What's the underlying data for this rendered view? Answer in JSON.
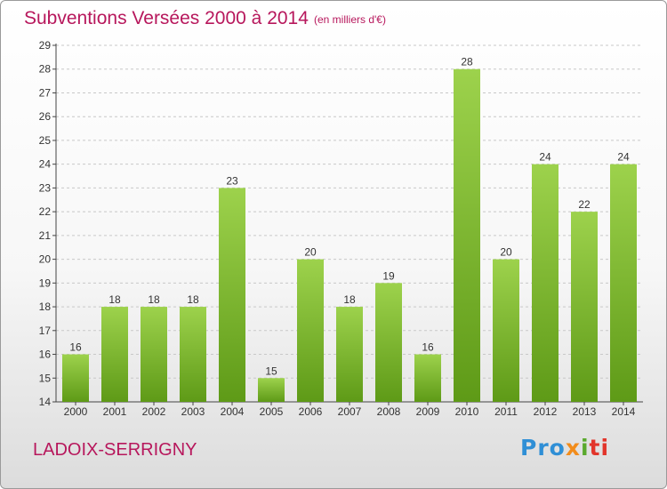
{
  "header": {
    "title": "Subventions Versées 2000 à 2014",
    "unit_note": "(en milliers d'€)"
  },
  "footer": {
    "commune": "LADOIX-SERRIGNY",
    "logo_parts": [
      "Pro",
      "x",
      "i",
      "ti"
    ]
  },
  "colors": {
    "accent": "#b7175c",
    "bar_top": "#9dd24c",
    "bar_bottom": "#5e9a17",
    "grid": "#c8c8c8"
  },
  "chart_data": {
    "type": "bar",
    "title": "Subventions Versées 2000 à 2014",
    "subtitle": "(en milliers d'€)",
    "categories": [
      "2000",
      "2001",
      "2002",
      "2003",
      "2004",
      "2005",
      "2006",
      "2007",
      "2008",
      "2009",
      "2010",
      "2011",
      "2012",
      "2013",
      "2014"
    ],
    "values": [
      16,
      18,
      18,
      18,
      23,
      15,
      20,
      18,
      19,
      16,
      28,
      20,
      24,
      22,
      24
    ],
    "ylim": [
      14,
      29
    ],
    "yticks": [
      14,
      15,
      16,
      17,
      18,
      19,
      20,
      21,
      22,
      23,
      24,
      25,
      26,
      27,
      28,
      29
    ],
    "grid": "dashed horizontal",
    "legend": "none",
    "xlabel": "",
    "ylabel": ""
  }
}
